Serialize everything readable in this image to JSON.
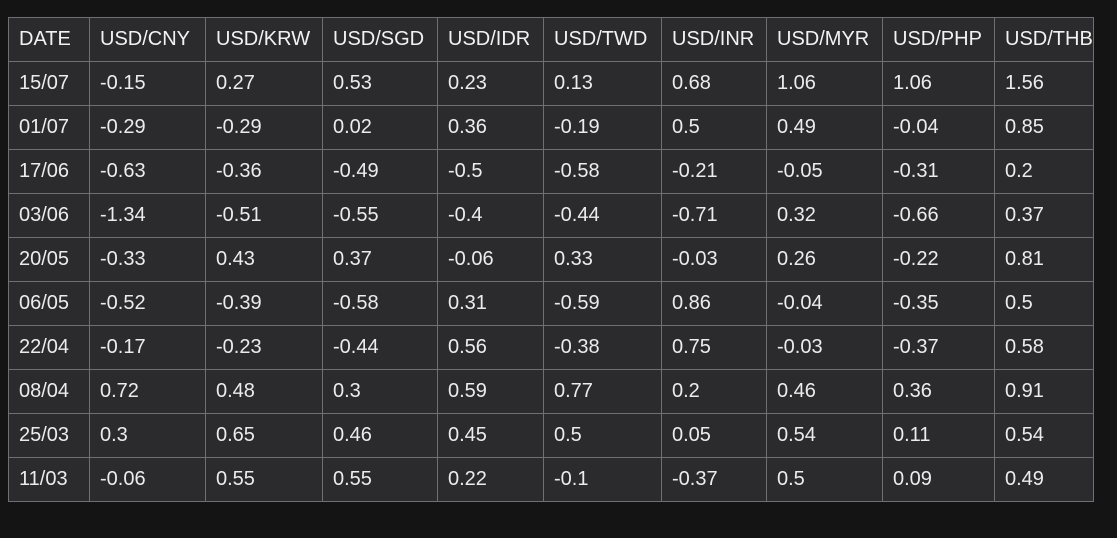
{
  "chart_data": {
    "type": "table",
    "columns": [
      "DATE",
      "USD/CNY",
      "USD/KRW",
      "USD/SGD",
      "USD/IDR",
      "USD/TWD",
      "USD/INR",
      "USD/MYR",
      "USD/PHP",
      "USD/THB"
    ],
    "rows": [
      [
        "15/07",
        "-0.15",
        "0.27",
        "0.53",
        "0.23",
        "0.13",
        "0.68",
        "1.06",
        "1.06",
        "1.56"
      ],
      [
        "01/07",
        "-0.29",
        "-0.29",
        "0.02",
        "0.36",
        "-0.19",
        "0.5",
        "0.49",
        "-0.04",
        "0.85"
      ],
      [
        "17/06",
        "-0.63",
        "-0.36",
        "-0.49",
        "-0.5",
        "-0.58",
        "-0.21",
        "-0.05",
        "-0.31",
        "0.2"
      ],
      [
        "03/06",
        "-1.34",
        "-0.51",
        "-0.55",
        "-0.4",
        "-0.44",
        "-0.71",
        "0.32",
        "-0.66",
        "0.37"
      ],
      [
        "20/05",
        "-0.33",
        "0.43",
        "0.37",
        "-0.06",
        "0.33",
        "-0.03",
        "0.26",
        "-0.22",
        "0.81"
      ],
      [
        "06/05",
        "-0.52",
        "-0.39",
        "-0.58",
        "0.31",
        "-0.59",
        "0.86",
        "-0.04",
        "-0.35",
        "0.5"
      ],
      [
        "22/04",
        "-0.17",
        "-0.23",
        "-0.44",
        "0.56",
        "-0.38",
        "0.75",
        "-0.03",
        "-0.37",
        "0.58"
      ],
      [
        "08/04",
        "0.72",
        "0.48",
        "0.3",
        "0.59",
        "0.77",
        "0.2",
        "0.46",
        "0.36",
        "0.91"
      ],
      [
        "25/03",
        "0.3",
        "0.65",
        "0.46",
        "0.45",
        "0.5",
        "0.05",
        "0.54",
        "0.11",
        "0.54"
      ],
      [
        "11/03",
        "-0.06",
        "0.55",
        "0.55",
        "0.22",
        "-0.1",
        "-0.37",
        "0.5",
        "0.09",
        "0.49"
      ]
    ]
  }
}
